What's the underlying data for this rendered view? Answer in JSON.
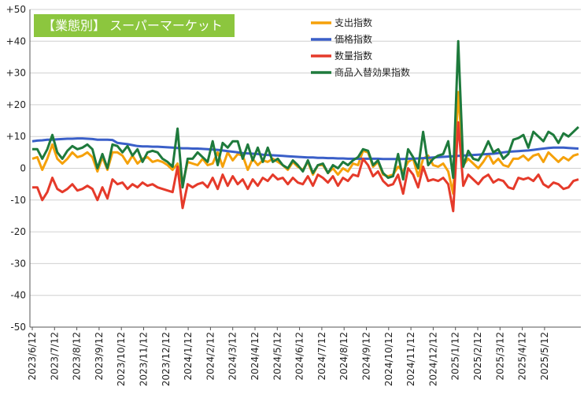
{
  "chart_data": {
    "type": "line",
    "title": "【業態別】 スーパーマーケット",
    "ylim": [
      -50,
      50
    ],
    "y_ticks": [
      "+50",
      "+40",
      "+30",
      "+20",
      "+10",
      "0",
      "-10",
      "-20",
      "-30",
      "-40",
      "-50"
    ],
    "x_tick_labels": [
      "2023/6/12",
      "2023/7/12",
      "2023/8/12",
      "2023/9/12",
      "2023/10/12",
      "2023/11/12",
      "2023/12/12",
      "2024/1/12",
      "2024/2/12",
      "2024/3/12",
      "2024/4/12",
      "2024/5/12",
      "2024/6/12",
      "2024/7/12",
      "2024/8/12",
      "2024/9/12",
      "2024/10/12",
      "2024/11/12",
      "2024/12/12",
      "2025/1/12",
      "2025/2/12",
      "2025/3/12",
      "2025/4/12",
      "2025/5/12"
    ],
    "grid": true,
    "legend_position": "top-right",
    "series": [
      {
        "name": "支出指数",
        "color": "#f5a10a",
        "values": [
          3,
          3.5,
          -0.5,
          3,
          7.5,
          3,
          1.5,
          3,
          5,
          3.5,
          4,
          5,
          3.5,
          -1,
          3.5,
          -0.5,
          5,
          5,
          4,
          1.5,
          4,
          1.5,
          3,
          3.5,
          2,
          2.5,
          2,
          1,
          -0.5,
          1.5,
          -5,
          2,
          1.5,
          1,
          3,
          1,
          1.5,
          5,
          0.5,
          5,
          2.5,
          4.5,
          4,
          -0.5,
          3,
          1,
          2.5,
          2,
          3,
          2,
          1,
          -0.5,
          2,
          0.5,
          -0.5,
          2,
          -2,
          1,
          1,
          -1.5,
          0,
          -2,
          0,
          -1,
          1.5,
          1,
          5.5,
          5,
          0.5,
          2,
          -2,
          -2.5,
          -2,
          0.5,
          -1,
          2,
          3,
          -2.5,
          3,
          4,
          1,
          0.5,
          1.5,
          -1,
          -8,
          24,
          1,
          3,
          1.5,
          0,
          2,
          4.5,
          1.5,
          3,
          1,
          0.5,
          3,
          3,
          4,
          2.5,
          4,
          4.5,
          2,
          5,
          3.5,
          2,
          3.5,
          2.5,
          4,
          4.5
        ]
      },
      {
        "name": "価格指数",
        "color": "#3a5fc8",
        "values": [
          8.5,
          8.7,
          8.8,
          9,
          9,
          9.1,
          9.2,
          9.3,
          9.3,
          9.4,
          9.4,
          9.3,
          9.2,
          9,
          9,
          9,
          8.9,
          8,
          7.8,
          7.6,
          7.3,
          7,
          6.9,
          6.9,
          6.8,
          6.8,
          6.7,
          6.6,
          6.5,
          6.4,
          6.3,
          6.3,
          6.2,
          6.2,
          6.1,
          6,
          5.9,
          5.8,
          5.6,
          5.4,
          5.2,
          5,
          4.8,
          4.7,
          4.6,
          4.5,
          4.3,
          4.2,
          4.1,
          4,
          3.9,
          3.8,
          3.7,
          3.6,
          3.5,
          3.4,
          3.4,
          3.3,
          3.3,
          3.2,
          3.2,
          3.1,
          3.1,
          3,
          3,
          3,
          3,
          3,
          3,
          3,
          2.9,
          2.9,
          2.9,
          2.9,
          2.9,
          3,
          3,
          3.1,
          3.2,
          3.3,
          3.4,
          3.5,
          3.6,
          3.7,
          3.8,
          3.9,
          4,
          4.1,
          4.2,
          4.3,
          4.4,
          4.5,
          4.6,
          4.8,
          5,
          5.2,
          5.3,
          5.4,
          5.5,
          5.6,
          5.8,
          6,
          6.2,
          6.4,
          6.5,
          6.5,
          6.5,
          6.4,
          6.3,
          6.2
        ]
      },
      {
        "name": "数量指数",
        "color": "#e53a2a",
        "values": [
          -6,
          -6,
          -10,
          -7.5,
          -3,
          -6.5,
          -7.5,
          -6.5,
          -5,
          -7,
          -6.5,
          -5.5,
          -6.5,
          -10,
          -6,
          -9.5,
          -3.5,
          -5,
          -4.5,
          -6.5,
          -5,
          -6,
          -4.5,
          -5.5,
          -5,
          -6,
          -6.5,
          -7,
          -7.5,
          0.5,
          -12.5,
          -5,
          -6,
          -5,
          -4.5,
          -6,
          -3,
          -6.5,
          -2,
          -5.5,
          -2.5,
          -5,
          -3.5,
          -6.5,
          -3.5,
          -5.5,
          -3,
          -4,
          -2,
          -3.5,
          -3,
          -5,
          -3,
          -4.5,
          -5,
          -2.5,
          -5.5,
          -2,
          -3,
          -4.5,
          -2.5,
          -5.5,
          -3,
          -4,
          -2,
          -2.5,
          3,
          1,
          -2.5,
          -1,
          -4,
          -5.5,
          -5,
          -2,
          -8,
          0,
          -2,
          -6,
          0.5,
          -4,
          -3.5,
          -4,
          -3,
          -5,
          -13.5,
          14.5,
          -5.5,
          -2,
          -3.5,
          -5,
          -3,
          -2,
          -4.5,
          -3.5,
          -4,
          -6,
          -6.5,
          -3,
          -3.5,
          -3,
          -4,
          -2,
          -5,
          -6,
          -4.5,
          -5,
          -6.5,
          -6,
          -4,
          -3.5
        ]
      },
      {
        "name": "商品入替効果指数",
        "color": "#1e7a3c",
        "values": [
          6,
          6,
          3,
          6,
          10.5,
          5,
          3,
          5.5,
          7,
          6,
          6.5,
          7.5,
          6,
          0,
          4.5,
          0,
          7.5,
          7,
          5,
          7,
          4,
          6,
          2,
          5,
          5.5,
          5,
          3,
          2,
          0.5,
          12.5,
          -6,
          3,
          3,
          5,
          3.5,
          2,
          8.5,
          1,
          8,
          6.5,
          8.5,
          8.5,
          3,
          7.5,
          2.5,
          6.5,
          2,
          6.5,
          2,
          3,
          1,
          0,
          2.5,
          1,
          -1,
          2.5,
          -1.5,
          1,
          1.5,
          -1.5,
          1,
          0,
          2,
          1,
          2.5,
          3.5,
          6,
          5.5,
          1,
          2.5,
          -1.5,
          -3,
          -2.5,
          4.5,
          -3.5,
          6,
          3.5,
          0,
          11.5,
          1,
          3,
          4,
          4.5,
          8.5,
          -3,
          40,
          0.5,
          5.5,
          3,
          2.5,
          5,
          8.5,
          5,
          6,
          3,
          4.5,
          9,
          9.5,
          10.5,
          6.5,
          11.5,
          10,
          8.5,
          11.5,
          10.5,
          8,
          11,
          10,
          11.5,
          13
        ]
      }
    ]
  }
}
